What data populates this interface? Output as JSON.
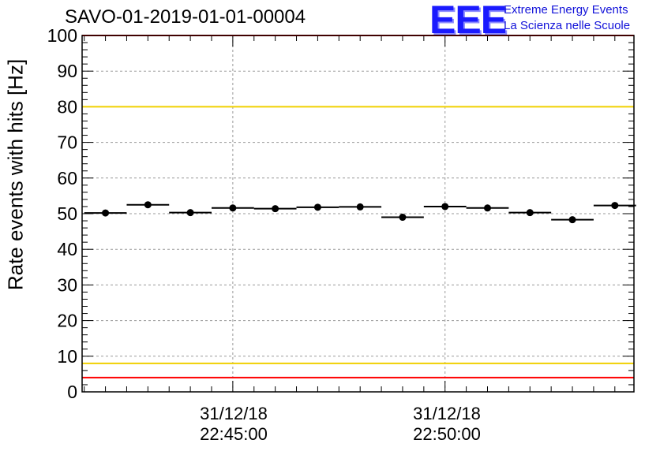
{
  "header": {
    "title": "SAVO-01-2019-01-01-00004",
    "logo_text": "EEE",
    "logo_line1": "Extreme Energy Events",
    "logo_line2": "La Scienza nelle Scuole"
  },
  "chart_data": {
    "type": "scatter",
    "title": "SAVO-01-2019-01-01-00004",
    "ylabel": "Rate events with hits [Hz]",
    "xlabel": "",
    "ylim": [
      0,
      100
    ],
    "yticks": [
      0,
      10,
      20,
      30,
      40,
      50,
      60,
      70,
      80,
      90,
      100
    ],
    "xlim_minutes": [
      -3.55,
      9.45
    ],
    "xtick_labels": [
      {
        "minute": 0,
        "line1": "31/12/18",
        "line2": "22:45:00"
      },
      {
        "minute": 5,
        "line1": "31/12/18",
        "line2": "22:50:00"
      }
    ],
    "grid": true,
    "reference_lines": [
      {
        "value": 100,
        "color": "#ff0000"
      },
      {
        "value": 80,
        "color": "#f0d000"
      },
      {
        "value": 8,
        "color": "#f0d000"
      },
      {
        "value": 4,
        "color": "#ff0000"
      }
    ],
    "bin_width_minutes": 1,
    "series": [
      {
        "name": "rate",
        "x_minutes": [
          -3.0,
          -2.0,
          -1.0,
          0.0,
          1.0,
          2.0,
          3.0,
          4.0,
          5.0,
          6.0,
          7.0,
          8.0,
          9.0
        ],
        "values": [
          50.2,
          52.5,
          50.3,
          51.6,
          51.4,
          51.8,
          51.9,
          49.0,
          52.0,
          51.6,
          50.3,
          48.3,
          52.3
        ]
      }
    ]
  }
}
